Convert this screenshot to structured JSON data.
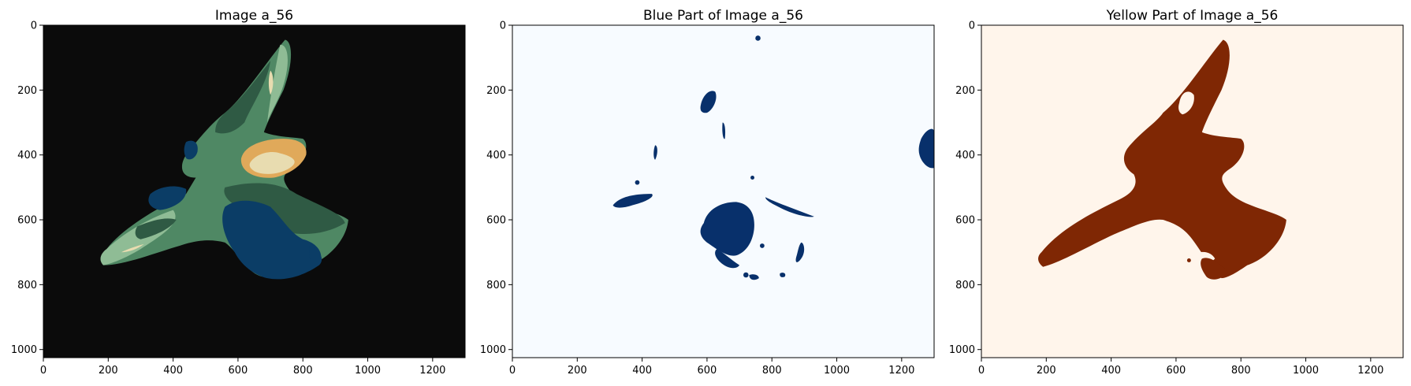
{
  "chart_data": [
    {
      "type": "heatmap",
      "title": "Image a_56",
      "xticks": [
        0,
        200,
        400,
        600,
        800,
        1000,
        1200
      ],
      "yticks": [
        0,
        200,
        400,
        600,
        800,
        1000
      ],
      "xlim": [
        0,
        1300
      ],
      "ylim": [
        1025,
        0
      ],
      "grid": false,
      "colors": {
        "background": "#0b0b0b",
        "dark_green": "#2f5a44",
        "mid_green": "#4f8864",
        "light_green": "#8fbc95",
        "pale": "#e8dcb0",
        "orange": "#e0a95a",
        "blue": "#0b3d66"
      }
    },
    {
      "type": "heatmap",
      "title": "Blue Part of Image a_56",
      "xticks": [
        0,
        200,
        400,
        600,
        800,
        1000,
        1200
      ],
      "yticks": [
        0,
        200,
        400,
        600,
        800,
        1000
      ],
      "xlim": [
        0,
        1300
      ],
      "ylim": [
        1025,
        0
      ],
      "grid": false,
      "colors": {
        "background": "#f7fbff",
        "mask": "#08306b"
      }
    },
    {
      "type": "heatmap",
      "title": "Yellow Part of Image a_56",
      "xticks": [
        0,
        200,
        400,
        600,
        800,
        1000,
        1200
      ],
      "yticks": [
        0,
        200,
        400,
        600,
        800,
        1000
      ],
      "xlim": [
        0,
        1300
      ],
      "ylim": [
        1025,
        0
      ],
      "grid": false,
      "colors": {
        "background": "#fff5eb",
        "mask": "#7f2704"
      }
    }
  ]
}
